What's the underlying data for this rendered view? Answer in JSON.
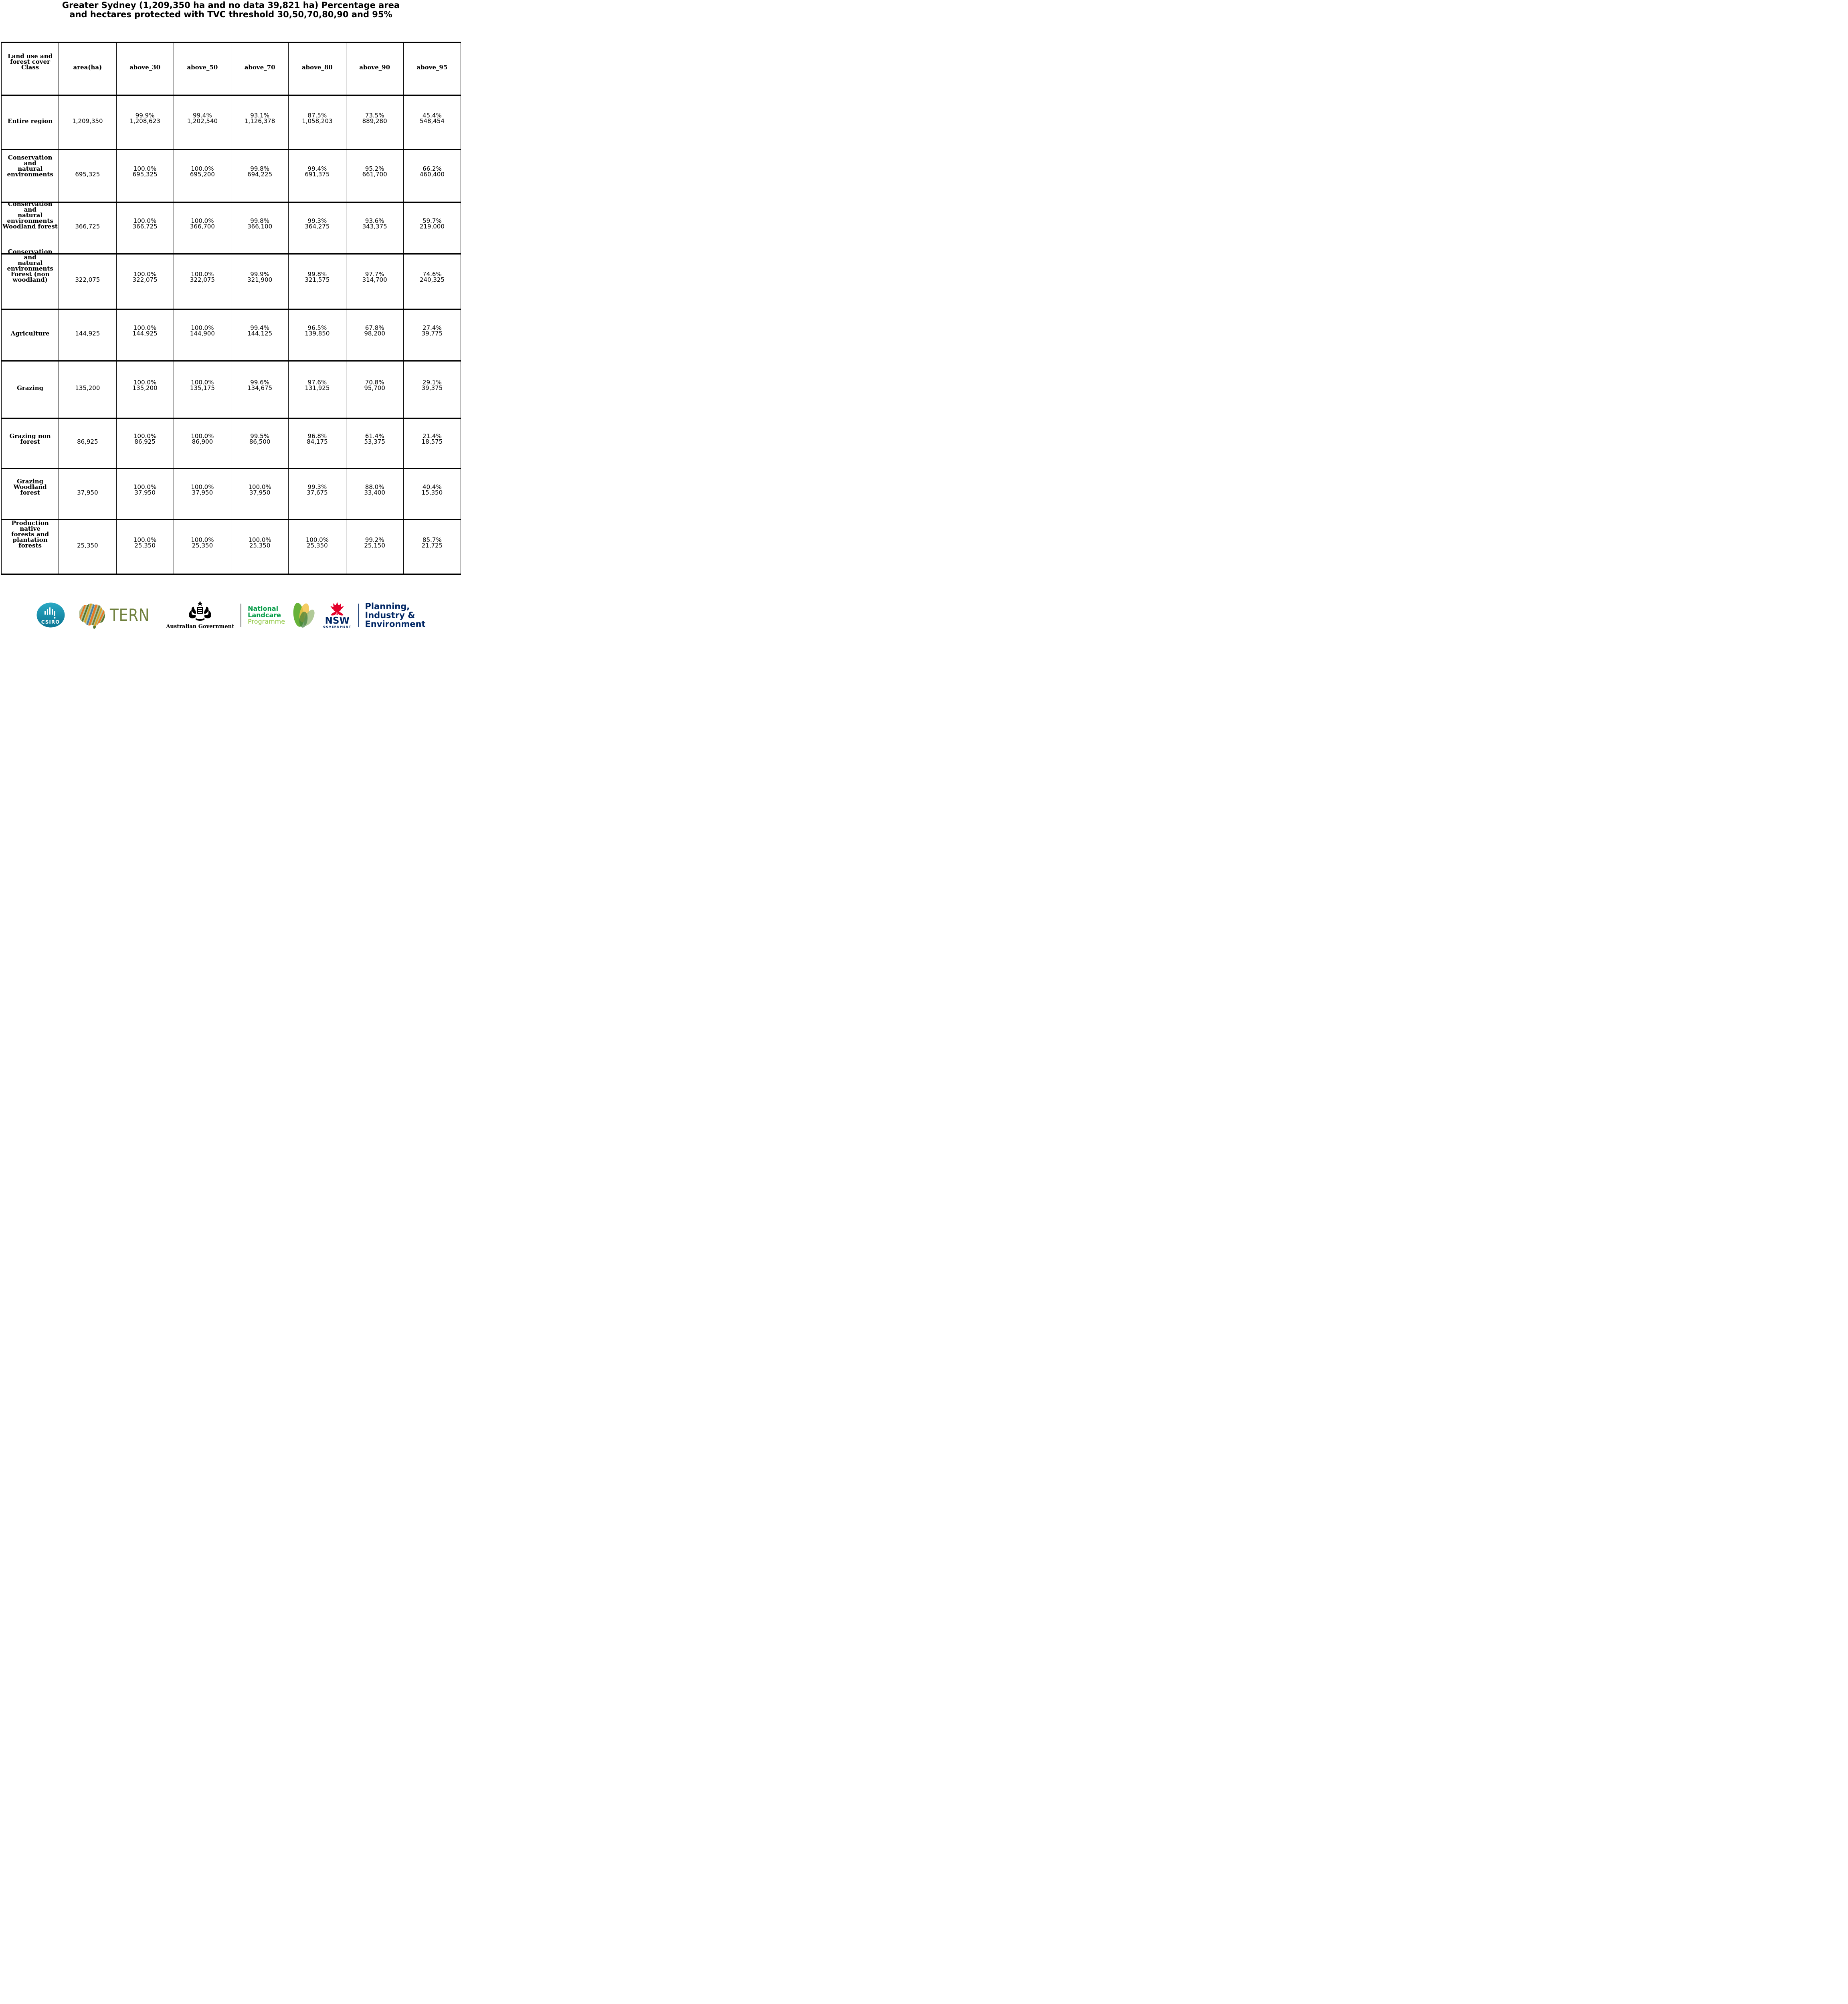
{
  "title": "Greater Sydney (1,209,350 ha and no data 39,821 ha) Percentage area\nand hectares protected with TVC threshold 30,50,70,80,90 and 95%",
  "table": {
    "header": [
      "Land use and\nforest cover\nClass",
      "area(ha)",
      "above_30",
      "above_50",
      "above_70",
      "above_80",
      "above_90",
      "above_95"
    ],
    "rows": [
      {
        "label": "Entire region",
        "values": [
          "1,209,350",
          "99.9%\n1,208,623",
          "99.4%\n1,202,540",
          "93.1%\n1,126,378",
          "87.5%\n1,058,203",
          "73.5%\n889,280",
          "45.4%\n548,454"
        ]
      },
      {
        "label": "Conservation and\nnatural\nenvironments",
        "values": [
          "695,325",
          "100.0%\n695,325",
          "100.0%\n695,200",
          "99.8%\n694,225",
          "99.4%\n691,375",
          "95.2%\n661,700",
          "66.2%\n460,400"
        ]
      },
      {
        "label": "Conservation and\nnatural\nenvironments\nWoodland forest",
        "values": [
          "366,725",
          "100.0%\n366,725",
          "100.0%\n366,700",
          "99.8%\n366,100",
          "99.3%\n364,275",
          "93.6%\n343,375",
          "59.7%\n219,000"
        ]
      },
      {
        "label": "Conservation and\nnatural\nenvironments\nForest (non\nwoodland)",
        "values": [
          "322,075",
          "100.0%\n322,075",
          "100.0%\n322,075",
          "99.9%\n321,900",
          "99.8%\n321,575",
          "97.7%\n314,700",
          "74.6%\n240,325"
        ]
      },
      {
        "label": "Agriculture",
        "values": [
          "144,925",
          "100.0%\n144,925",
          "100.0%\n144,900",
          "99.4%\n144,125",
          "96.5%\n139,850",
          "67.8%\n98,200",
          "27.4%\n39,775"
        ]
      },
      {
        "label": "Grazing",
        "values": [
          "135,200",
          "100.0%\n135,200",
          "100.0%\n135,175",
          "99.6%\n134,675",
          "97.6%\n131,925",
          "70.8%\n95,700",
          "29.1%\n39,375"
        ]
      },
      {
        "label": "Grazing non\nforest",
        "values": [
          "86,925",
          "100.0%\n86,925",
          "100.0%\n86,900",
          "99.5%\n86,500",
          "96.8%\n84,175",
          "61.4%\n53,375",
          "21.4%\n18,575"
        ]
      },
      {
        "label": "Grazing Woodland\nforest",
        "values": [
          "37,950",
          "100.0%\n37,950",
          "100.0%\n37,950",
          "100.0%\n37,950",
          "99.3%\n37,675",
          "88.0%\n33,400",
          "40.4%\n15,350"
        ]
      },
      {
        "label": "Production native\nforests and\nplantation\nforests",
        "values": [
          "25,350",
          "100.0%\n25,350",
          "100.0%\n25,350",
          "100.0%\n25,350",
          "100.0%\n25,350",
          "99.2%\n25,150",
          "85.7%\n21,725"
        ]
      }
    ]
  },
  "footer": {
    "csiro_label": "CSIRO",
    "tern_label": "TERN",
    "aus_gov_label": "Australian Government",
    "landcare_line1": "National",
    "landcare_line2": "Landcare",
    "landcare_line3": "Programme",
    "nsw_label": "NSW",
    "nsw_sub_label": "GOVERNMENT",
    "planning_label": "Planning,\nIndustry &\nEnvironment",
    "colors": {
      "csiro_teal": "#0e7c9c",
      "tern_olive": "#6e7f3c",
      "landcare_green": "#009a44",
      "landcare_light_green": "#8fc742",
      "nsw_red": "#e4002b",
      "nsw_navy": "#002664"
    }
  }
}
